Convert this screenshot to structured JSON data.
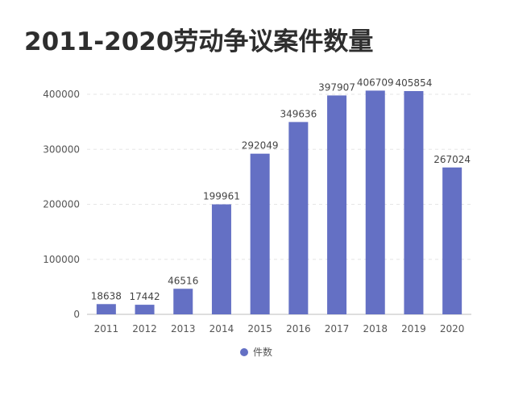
{
  "title": "2011-2020劳动争议案件数量",
  "chart_data": {
    "type": "bar",
    "title": "2011-2020劳动争议案件数量",
    "categories": [
      "2011",
      "2012",
      "2013",
      "2014",
      "2015",
      "2016",
      "2017",
      "2018",
      "2019",
      "2020"
    ],
    "series": [
      {
        "name": "件数",
        "values": [
          18638,
          17442,
          46516,
          199961,
          292049,
          349636,
          397907,
          406709,
          405854,
          267024
        ]
      }
    ],
    "yticks": [
      "0",
      "100000",
      "200000",
      "300000",
      "400000"
    ],
    "ylim": [
      0,
      400000
    ],
    "grid": true,
    "legend": "bottom-center",
    "bar_color": "#6470c4"
  }
}
